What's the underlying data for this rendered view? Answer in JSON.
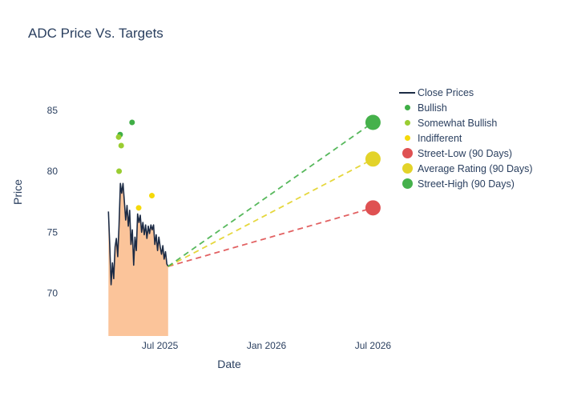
{
  "chart_data": {
    "type": "line",
    "title": "ADC Price Vs. Targets",
    "xlabel": "Date",
    "ylabel": "Price",
    "x_range": [
      2025.05,
      2026.6
    ],
    "y_range": [
      66.5,
      88.0
    ],
    "x_ticks": [
      {
        "v": 2025.5,
        "label": "Jul 2025"
      },
      {
        "v": 2026.0,
        "label": "Jan 2026"
      },
      {
        "v": 2026.5,
        "label": "Jul 2026"
      }
    ],
    "y_ticks": [
      70,
      75,
      80,
      85
    ],
    "close_prices": {
      "name": "Close Prices",
      "line_color": "#1c2b45",
      "fill_color": "#fbc49a",
      "x_start": 2025.258,
      "x_step": 0.00623,
      "values": [
        76.7,
        74.0,
        70.7,
        72.5,
        71.2,
        73.8,
        74.5,
        73.0,
        75.5,
        79.0,
        78.2,
        79.0,
        77.5,
        76.0,
        77.2,
        75.5,
        76.8,
        74.0,
        75.2,
        72.3,
        74.6,
        73.5,
        76.5,
        75.8,
        76.4,
        75.0,
        75.8,
        74.8,
        75.6,
        74.5,
        75.5,
        74.9,
        75.6,
        75.2,
        75.6,
        74.0,
        74.8,
        73.5,
        74.6,
        73.8,
        73.2,
        73.9,
        72.8,
        73.4,
        72.4,
        72.2
      ]
    },
    "ratings": [
      {
        "name": "Bullish",
        "color": "#3fae46",
        "points": [
          [
            2025.313,
            83.0
          ],
          [
            2025.369,
            84.0
          ]
        ]
      },
      {
        "name": "Somewhat Bullish",
        "color": "#9acd32",
        "points": [
          [
            2025.306,
            82.8
          ],
          [
            2025.318,
            82.1
          ],
          [
            2025.308,
            80.0
          ]
        ]
      },
      {
        "name": "Indifferent",
        "color": "#f5d90a",
        "points": [
          [
            2025.4,
            77.0
          ],
          [
            2025.462,
            78.0
          ]
        ]
      }
    ],
    "targets": [
      {
        "name": "Street-Low (90 Days)",
        "color": "#df5152",
        "x": 2026.5,
        "value": 77.0
      },
      {
        "name": "Average Rating (90 Days)",
        "color": "#e3d329",
        "x": 2026.5,
        "value": 81.0
      },
      {
        "name": "Street-High (90 Days)",
        "color": "#45b14b",
        "x": 2026.5,
        "value": 84.0
      }
    ],
    "projection_start": {
      "x": 2025.538,
      "value": 72.2
    }
  },
  "legend": {
    "items": [
      {
        "label": "Close Prices",
        "type": "line",
        "color": "#1c2b45"
      },
      {
        "label": "Bullish",
        "type": "dot",
        "color": "#3fae46"
      },
      {
        "label": "Somewhat Bullish",
        "type": "dot",
        "color": "#9acd32"
      },
      {
        "label": "Indifferent",
        "type": "dot",
        "color": "#f5d90a"
      },
      {
        "label": "Street-Low (90 Days)",
        "type": "big-dot",
        "color": "#df5152"
      },
      {
        "label": "Average Rating (90 Days)",
        "type": "big-dot",
        "color": "#e3d329"
      },
      {
        "label": "Street-High (90 Days)",
        "type": "big-dot",
        "color": "#45b14b"
      }
    ]
  }
}
